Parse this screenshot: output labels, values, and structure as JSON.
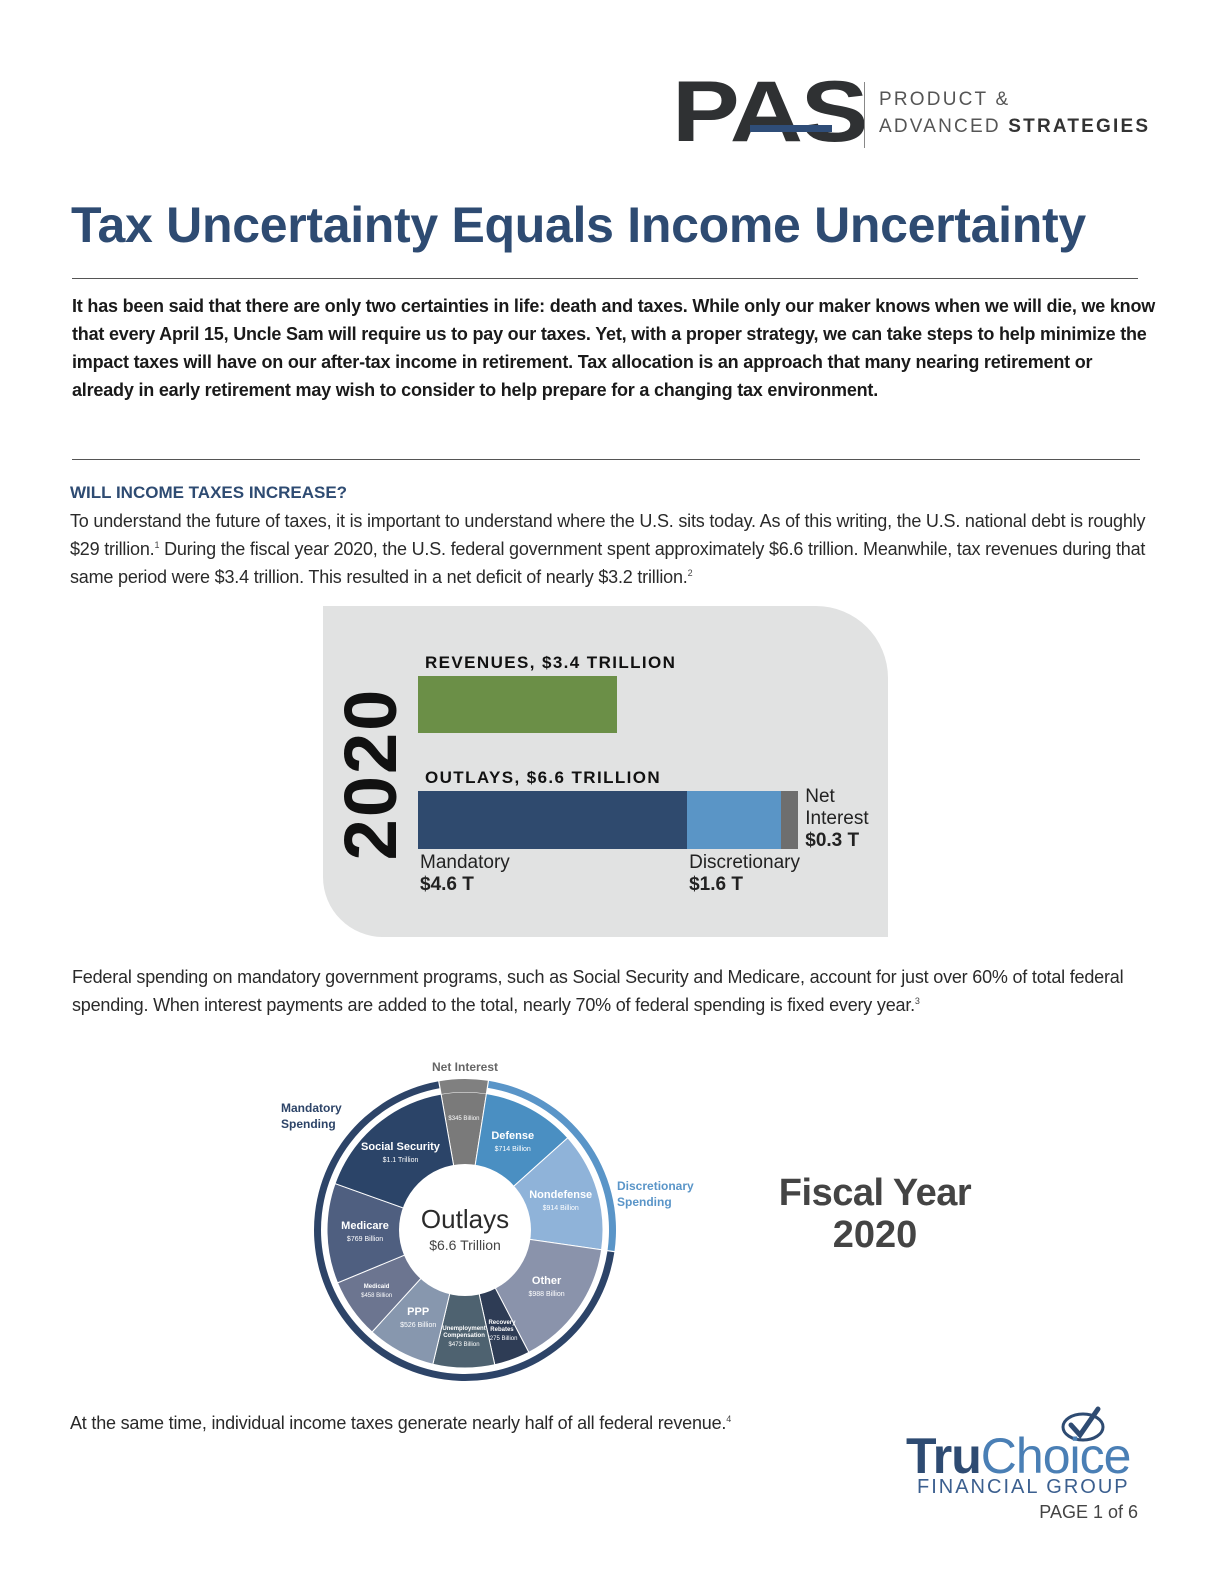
{
  "header": {
    "logo": "PAS",
    "tagline_1": "PRODUCT &",
    "tagline_2": "ADVANCED",
    "tagline_3": "STRATEGIES"
  },
  "title": "Tax Uncertainty Equals Income Uncertainty",
  "intro": "It has been said that there are only two certainties in life: death and taxes. While only our maker knows when we will die, we know that every April 15, Uncle Sam will require us to pay our taxes. Yet, with a proper strategy, we can take steps to help minimize the impact taxes will have on our after-tax income in retirement. Tax allocation is an approach that many nearing retirement or already in early retirement may wish to consider to help prepare for a changing tax environment.",
  "section_heading": "WILL INCOME TAXES INCREASE?",
  "paragraph_1": [
    {
      "text": "To understand the future of taxes, it is important to understand where the U.S. sits today. As of this writing, the U.S. national debt is roughly $29 trillion."
    },
    {
      "sup": "1"
    },
    {
      "text": " During the fiscal year 2020, the U.S. federal government spent approximately $6.6 trillion. Meanwhile, tax revenues during that same period were $3.4 trillion. This resulted in a net deficit of nearly $3.2 trillion."
    },
    {
      "sup": "2"
    }
  ],
  "budget_chart": {
    "type": "bar",
    "year": "2020",
    "revenues": {
      "label": "REVENUES, $3.4 TRILLION",
      "value": 3.4,
      "color": "#6b8f47"
    },
    "outlays": {
      "label": "OUTLAYS, $6.6 TRILLION",
      "segments": [
        {
          "name": "Mandatory",
          "value": 4.6,
          "value_label": "$4.6 T",
          "color": "#2f4a6e"
        },
        {
          "name": "Discretionary",
          "value": 1.6,
          "value_label": "$1.6 T",
          "color": "#5a95c6"
        },
        {
          "name": "Net Interest",
          "value": 0.3,
          "value_label": "$0.3 T",
          "color": "#6e6e6e"
        }
      ]
    }
  },
  "paragraph_2": [
    {
      "text": "Federal spending on mandatory government programs, such as Social Security and Medicare, account for just over 60% of total federal spending. When interest payments are added to the total, nearly 70% of federal spending is fixed every year."
    },
    {
      "sup": "3"
    }
  ],
  "outlays_chart": {
    "type": "pie",
    "center_title": "Outlays",
    "center_subtitle": "$6.6 Trillion",
    "side_title_1": "Fiscal Year",
    "side_title_2": "2020",
    "groups": [
      {
        "name": "Net Interest",
        "color": "#808080",
        "slices": [
          {
            "value": 345,
            "value_label": "$345 Billion",
            "color": "#7a7a7a"
          }
        ]
      },
      {
        "name": "Discretionary Spending",
        "color": "#5a95c8",
        "slices": [
          {
            "name": "Defense",
            "value": 714,
            "value_label": "$714 Billion",
            "color": "#4a8fc2"
          },
          {
            "name": "Nondefense",
            "value": 914,
            "value_label": "$914 Billion",
            "color": "#8fb3d9"
          }
        ]
      },
      {
        "name": "Mandatory Spending",
        "color": "#2d4468",
        "slices": [
          {
            "name": "Other",
            "value": 988,
            "value_label": "$988 Billion",
            "color": "#8a93ab"
          },
          {
            "name": "Recovery Rebates",
            "value": 275,
            "value_label": "$275 Billion",
            "color": "#2e3c55"
          },
          {
            "name": "Unemployment Compensation",
            "value": 473,
            "value_label": "$473 Billion",
            "color": "#4e6270"
          },
          {
            "name": "PPP",
            "value": 526,
            "value_label": "$526 Billion",
            "color": "#8797ae"
          },
          {
            "name": "Medicaid",
            "value": 458,
            "value_label": "$458 Billion",
            "color": "#6c7590"
          },
          {
            "name": "Medicare",
            "value": 769,
            "value_label": "$769 Billion",
            "color": "#4f5f80"
          },
          {
            "name": "Social Security",
            "value": 1100,
            "value_label": "$1.1 Trillion",
            "color": "#2b4468"
          }
        ]
      }
    ]
  },
  "paragraph_3": [
    {
      "text": "At the same time, individual income taxes generate nearly half of all federal revenue."
    },
    {
      "sup": "4"
    }
  ],
  "footer": {
    "brand_1": "Tru",
    "brand_2": "Choice",
    "brand_3": "FINANCIAL GROUP",
    "page": "PAGE 1 of 6"
  }
}
